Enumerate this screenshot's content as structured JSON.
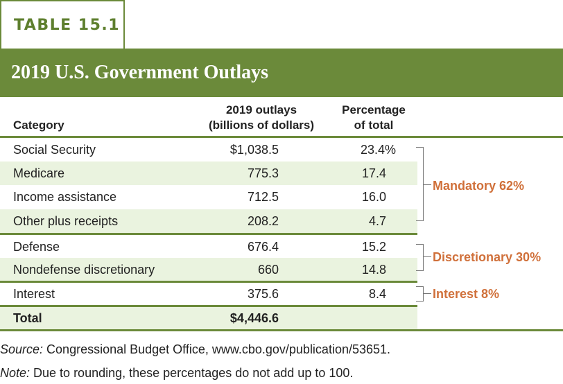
{
  "tag": "TABLE 15.1",
  "title": "2019 U.S. Government Outlays",
  "headers": {
    "category": "Category",
    "outlays_line1": "2019 outlays",
    "outlays_line2": "(billions of dollars)",
    "pct_line1": "Percentage",
    "pct_line2": "of total"
  },
  "rows": [
    {
      "category": "Social Security",
      "outlays": "$1,038.5",
      "pct": "23.4%"
    },
    {
      "category": "Medicare",
      "outlays": "775.3",
      "pct": "17.4"
    },
    {
      "category": "Income assistance",
      "outlays": "712.5",
      "pct": "16.0"
    },
    {
      "category": "Other plus receipts",
      "outlays": "208.2",
      "pct": "4.7"
    },
    {
      "category": "Defense",
      "outlays": "676.4",
      "pct": "15.2"
    },
    {
      "category": "Nondefense discretionary",
      "outlays": "660",
      "pct": "14.8"
    },
    {
      "category": "Interest",
      "outlays": "375.6",
      "pct": "8.4"
    }
  ],
  "total": {
    "category": "Total",
    "outlays": "$4,446.6"
  },
  "groups": {
    "mandatory": "Mandatory 62%",
    "discretionary": "Discretionary 30%",
    "interest": "Interest 8%"
  },
  "footnotes": {
    "source_label": "Source:",
    "source_text": " Congressional Budget Office, www.cbo.gov/publication/53651.",
    "note_label": "Note:",
    "note_text": " Due to rounding, these percentages do not add up to 100."
  },
  "colors": {
    "accent": "#6b8a3a",
    "shade": "#eaf3df",
    "label": "#d0703a"
  }
}
